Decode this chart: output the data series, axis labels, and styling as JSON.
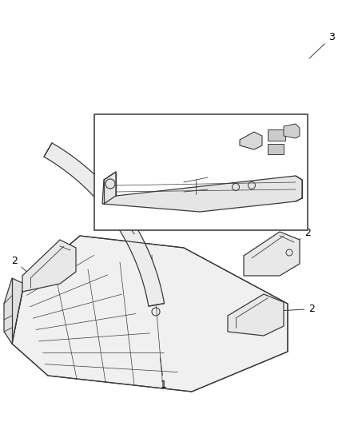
{
  "background_color": "#ffffff",
  "line_color": "#3a3a3a",
  "fill_color": "#f2f2f2",
  "fill_dark": "#d8d8d8",
  "figsize": [
    4.38,
    5.33
  ],
  "dpi": 100
}
